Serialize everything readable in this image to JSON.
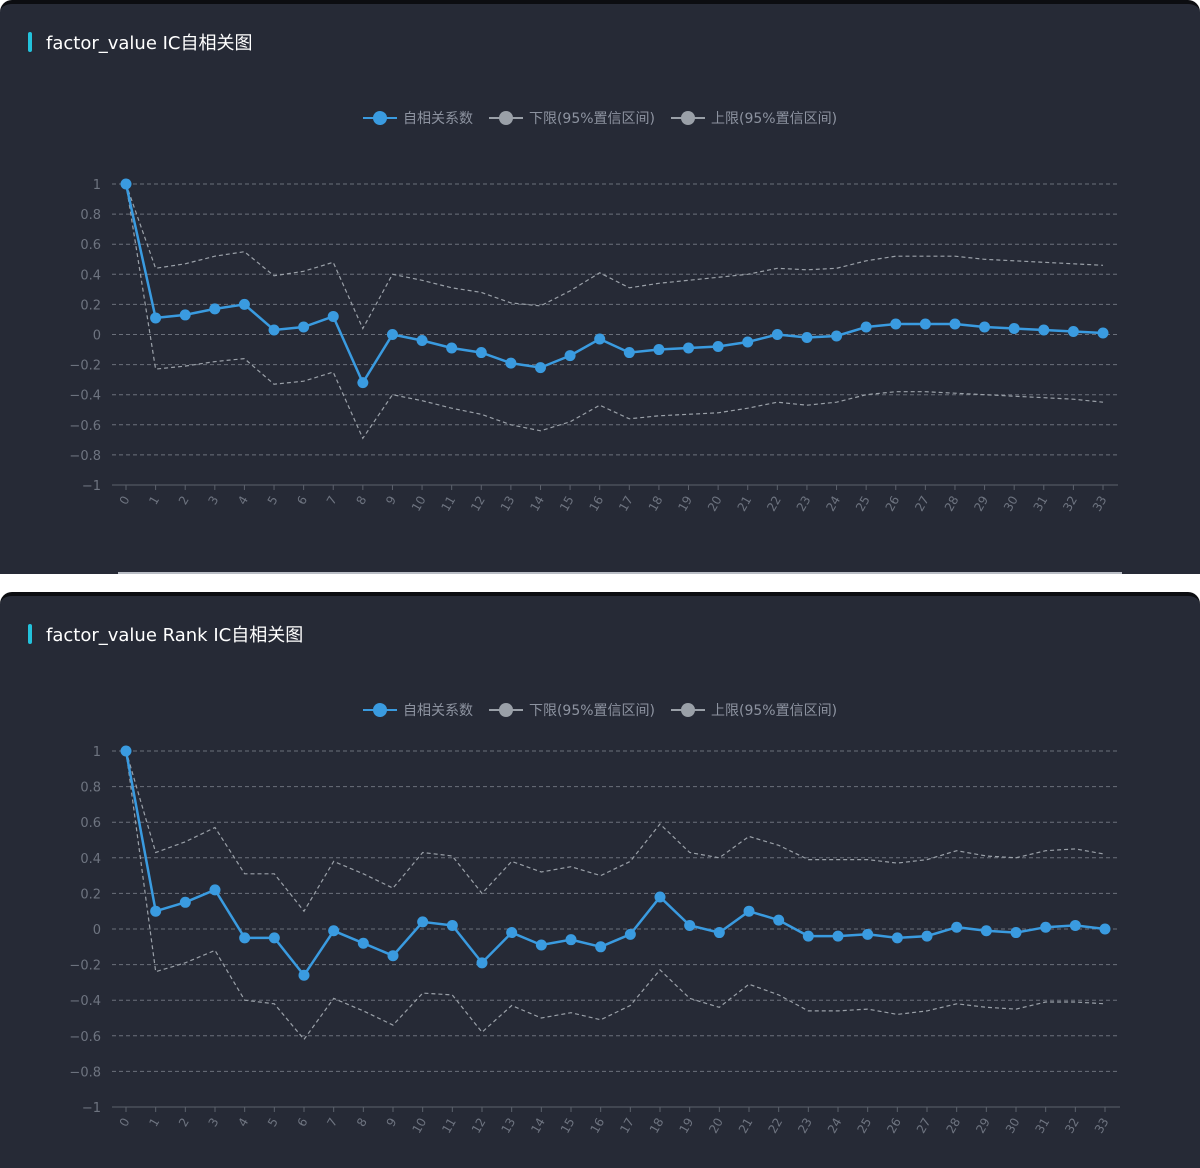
{
  "colors": {
    "panel_bg": "#262a36",
    "title_accent": "#23c2dc",
    "series_main": "#3a9be0",
    "series_bound": "#9aa0a8",
    "grid": "#6b707b",
    "axis_text": "#6e7480"
  },
  "charts": [
    {
      "title": "factor_value IC自相关图"
    },
    {
      "title": "factor_value Rank IC自相关图"
    }
  ],
  "chart_data": [
    {
      "type": "line",
      "title": "factor_value IC自相关图",
      "xlabel": "",
      "ylabel": "",
      "ylim": [
        -1,
        1
      ],
      "yticks": [
        "1",
        "0.8",
        "0.6",
        "0.4",
        "0.2",
        "0",
        "−0.2",
        "−0.4",
        "−0.6",
        "−0.8",
        "−1"
      ],
      "grid": true,
      "legend_position": "top-center",
      "x": [
        0,
        1,
        2,
        3,
        4,
        5,
        6,
        7,
        8,
        9,
        10,
        11,
        12,
        13,
        14,
        15,
        16,
        17,
        18,
        19,
        20,
        21,
        22,
        23,
        24,
        25,
        26,
        27,
        28,
        29,
        30,
        31,
        32,
        33
      ],
      "series": [
        {
          "name": "自相关系数",
          "style": "solid-markers",
          "values": [
            1.0,
            0.11,
            0.13,
            0.17,
            0.2,
            0.03,
            0.05,
            0.12,
            -0.32,
            0.0,
            -0.04,
            -0.09,
            -0.12,
            -0.19,
            -0.22,
            -0.14,
            -0.03,
            -0.12,
            -0.1,
            -0.09,
            -0.08,
            -0.05,
            0.0,
            -0.02,
            -0.01,
            0.05,
            0.07,
            0.07,
            0.07,
            0.05,
            0.04,
            0.03,
            0.02,
            0.01
          ]
        },
        {
          "name": "下限(95%置信区间)",
          "style": "dashed",
          "values": [
            1.0,
            -0.23,
            -0.21,
            -0.18,
            -0.16,
            -0.33,
            -0.31,
            -0.25,
            -0.69,
            -0.4,
            -0.44,
            -0.49,
            -0.53,
            -0.6,
            -0.64,
            -0.58,
            -0.47,
            -0.56,
            -0.54,
            -0.53,
            -0.52,
            -0.49,
            -0.45,
            -0.47,
            -0.45,
            -0.4,
            -0.38,
            -0.38,
            -0.39,
            -0.4,
            -0.41,
            -0.42,
            -0.43,
            -0.45
          ]
        },
        {
          "name": "上限(95%置信区间)",
          "style": "dashed",
          "values": [
            1.0,
            0.44,
            0.47,
            0.52,
            0.55,
            0.39,
            0.42,
            0.48,
            0.04,
            0.4,
            0.36,
            0.31,
            0.28,
            0.21,
            0.19,
            0.29,
            0.41,
            0.31,
            0.34,
            0.36,
            0.38,
            0.4,
            0.44,
            0.43,
            0.44,
            0.49,
            0.52,
            0.52,
            0.52,
            0.5,
            0.49,
            0.48,
            0.47,
            0.46
          ]
        }
      ]
    },
    {
      "type": "line",
      "title": "factor_value Rank IC自相关图",
      "xlabel": "",
      "ylabel": "",
      "ylim": [
        -1,
        1
      ],
      "yticks": [
        "1",
        "0.8",
        "0.6",
        "0.4",
        "0.2",
        "0",
        "−0.2",
        "−0.4",
        "−0.6",
        "−0.8",
        "−1"
      ],
      "grid": true,
      "legend_position": "top-center",
      "x": [
        0,
        1,
        2,
        3,
        4,
        5,
        6,
        7,
        8,
        9,
        10,
        11,
        12,
        13,
        14,
        15,
        16,
        17,
        18,
        19,
        20,
        21,
        22,
        23,
        24,
        25,
        26,
        27,
        28,
        29,
        30,
        31,
        32,
        33
      ],
      "series": [
        {
          "name": "自相关系数",
          "style": "solid-markers",
          "values": [
            1.0,
            0.1,
            0.15,
            0.22,
            -0.05,
            -0.05,
            -0.26,
            -0.01,
            -0.08,
            -0.15,
            0.04,
            0.02,
            -0.19,
            -0.02,
            -0.09,
            -0.06,
            -0.1,
            -0.03,
            0.18,
            0.02,
            -0.02,
            0.1,
            0.05,
            -0.04,
            -0.04,
            -0.03,
            -0.05,
            -0.04,
            0.01,
            -0.01,
            -0.02,
            0.01,
            0.02,
            0.0
          ]
        },
        {
          "name": "下限(95%置信区间)",
          "style": "dashed",
          "values": [
            1.0,
            -0.24,
            -0.19,
            -0.12,
            -0.4,
            -0.42,
            -0.62,
            -0.39,
            -0.46,
            -0.54,
            -0.36,
            -0.37,
            -0.58,
            -0.43,
            -0.5,
            -0.47,
            -0.51,
            -0.43,
            -0.23,
            -0.39,
            -0.44,
            -0.31,
            -0.37,
            -0.46,
            -0.46,
            -0.45,
            -0.48,
            -0.46,
            -0.42,
            -0.44,
            -0.45,
            -0.41,
            -0.41,
            -0.42
          ]
        },
        {
          "name": "上限(95%置信区间)",
          "style": "dashed",
          "values": [
            1.0,
            0.43,
            0.49,
            0.57,
            0.31,
            0.31,
            0.1,
            0.38,
            0.31,
            0.23,
            0.43,
            0.41,
            0.2,
            0.38,
            0.32,
            0.35,
            0.3,
            0.38,
            0.59,
            0.43,
            0.4,
            0.52,
            0.47,
            0.39,
            0.39,
            0.39,
            0.37,
            0.39,
            0.44,
            0.41,
            0.4,
            0.44,
            0.45,
            0.42
          ]
        }
      ]
    }
  ]
}
